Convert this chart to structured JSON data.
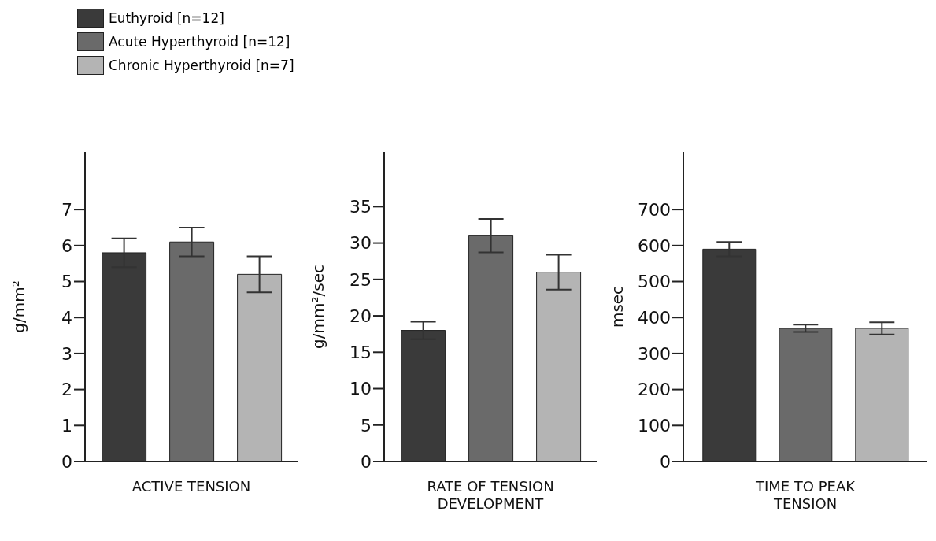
{
  "chart_data": [
    {
      "type": "bar",
      "categories": [
        null
      ],
      "xlabel": "ACTIVE TENSION",
      "ylabel": "g/mm²",
      "ylim": [
        0,
        8.6
      ],
      "yticks": [
        0,
        1,
        2,
        3,
        4,
        5,
        6,
        7
      ],
      "tick_labels": "y",
      "legend": "top left",
      "series": [
        {
          "name": "Euthyroid [n=12]",
          "color": "#3a3a3a",
          "values": [
            5.8
          ],
          "errors": [
            0.4
          ]
        },
        {
          "name": "Acute Hyperthyroid [n=12]",
          "color": "#6a6a6a",
          "values": [
            6.1
          ],
          "errors": [
            0.4
          ]
        },
        {
          "name": "Chronic Hyperthyroid [n=7]",
          "color": "#b4b4b4",
          "values": [
            5.2
          ],
          "errors": [
            0.5
          ]
        }
      ]
    },
    {
      "type": "bar",
      "categories": [
        null
      ],
      "xlabel": "RATE OF TENSION DEVELOPMENT",
      "ylabel": "g/mm²/sec",
      "ylim": [
        0,
        42.5
      ],
      "yticks": [
        0,
        5,
        10,
        15,
        20,
        25,
        30,
        35
      ],
      "tick_labels": "y",
      "series": [
        {
          "color": "#3a3a3a",
          "values": [
            18
          ],
          "errors": [
            1.2
          ]
        },
        {
          "color": "#6a6a6a",
          "values": [
            31
          ],
          "errors": [
            2.3
          ]
        },
        {
          "color": "#b4b4b4",
          "values": [
            26
          ],
          "errors": [
            2.4
          ]
        }
      ]
    },
    {
      "type": "bar",
      "categories": [
        null
      ],
      "xlabel": "TIME TO PEAK TENSION",
      "ylabel": "msec",
      "ylim": [
        0,
        860
      ],
      "yticks": [
        0,
        100,
        200,
        300,
        400,
        500,
        600,
        700
      ],
      "tick_labels": "y",
      "series": [
        {
          "color": "#3a3a3a",
          "values": [
            590
          ],
          "errors": [
            20
          ]
        },
        {
          "color": "#6a6a6a",
          "values": [
            370
          ],
          "errors": [
            10
          ]
        },
        {
          "color": "#b4b4b4",
          "values": [
            370
          ],
          "errors": [
            17
          ]
        }
      ]
    }
  ]
}
